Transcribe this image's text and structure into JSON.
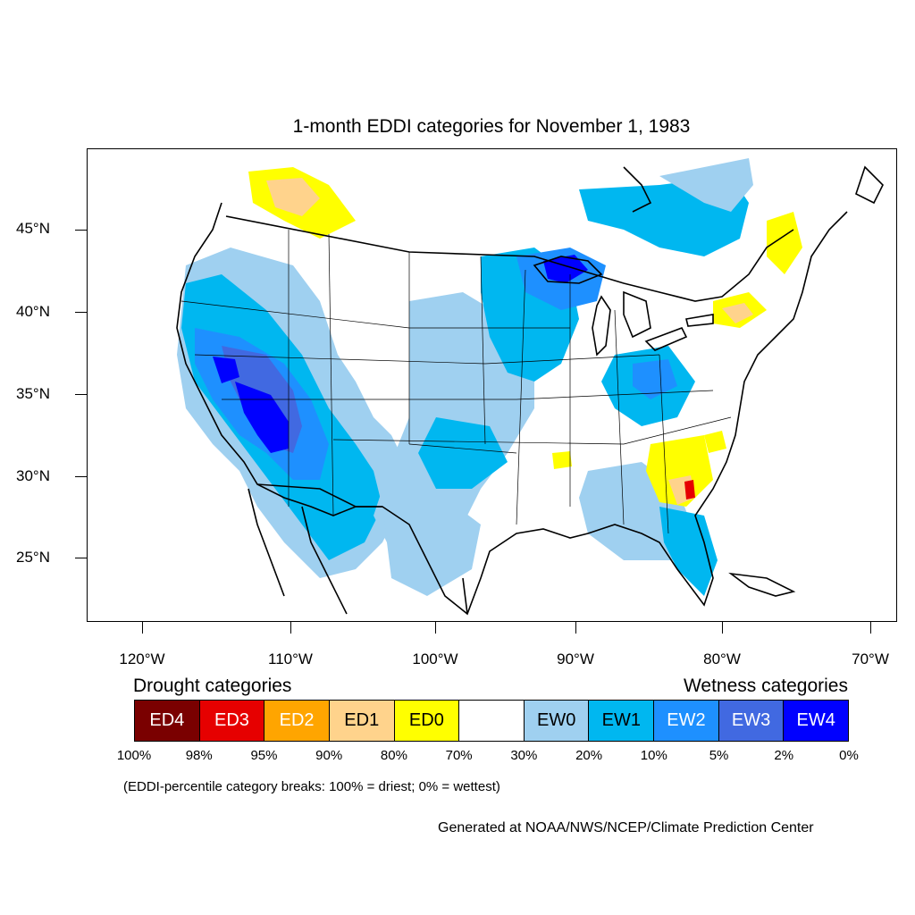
{
  "title": "1-month EDDI categories for November 1, 1983",
  "lat_labels": [
    "45°N",
    "40°N",
    "35°N",
    "30°N",
    "25°N"
  ],
  "lon_labels": [
    "120°W",
    "110°W",
    "100°W",
    "90°W",
    "80°W",
    "70°W"
  ],
  "legend": {
    "drought_heading": "Drought categories",
    "wetness_heading": "Wetness categories",
    "categories": [
      {
        "label": "ED4",
        "color": "#7a0000",
        "text_color": "#ffffff"
      },
      {
        "label": "ED3",
        "color": "#e60000",
        "text_color": "#ffffff"
      },
      {
        "label": "ED2",
        "color": "#ffa500",
        "text_color": "#ffffff"
      },
      {
        "label": "ED1",
        "color": "#ffd38c",
        "text_color": "#000000"
      },
      {
        "label": "ED0",
        "color": "#ffff00",
        "text_color": "#000000"
      },
      {
        "label": "",
        "color": "#ffffff",
        "text_color": "#000000"
      },
      {
        "label": "EW0",
        "color": "#9fd0f0",
        "text_color": "#000000"
      },
      {
        "label": "EW1",
        "color": "#00b7f0",
        "text_color": "#000000"
      },
      {
        "label": "EW2",
        "color": "#1e90ff",
        "text_color": "#ffffff"
      },
      {
        "label": "EW3",
        "color": "#4169e1",
        "text_color": "#ffffff"
      },
      {
        "label": "EW4",
        "color": "#0000ff",
        "text_color": "#ffffff"
      }
    ],
    "breaks": [
      "100%",
      "98%",
      "95%",
      "90%",
      "80%",
      "70%",
      "30%",
      "20%",
      "10%",
      "5%",
      "2%",
      "0%"
    ]
  },
  "note": "(EDDI-percentile category breaks: 100% = driest; 0% = wettest)",
  "credit": "Generated at NOAA/NWS/NCEP/Climate Prediction Center"
}
